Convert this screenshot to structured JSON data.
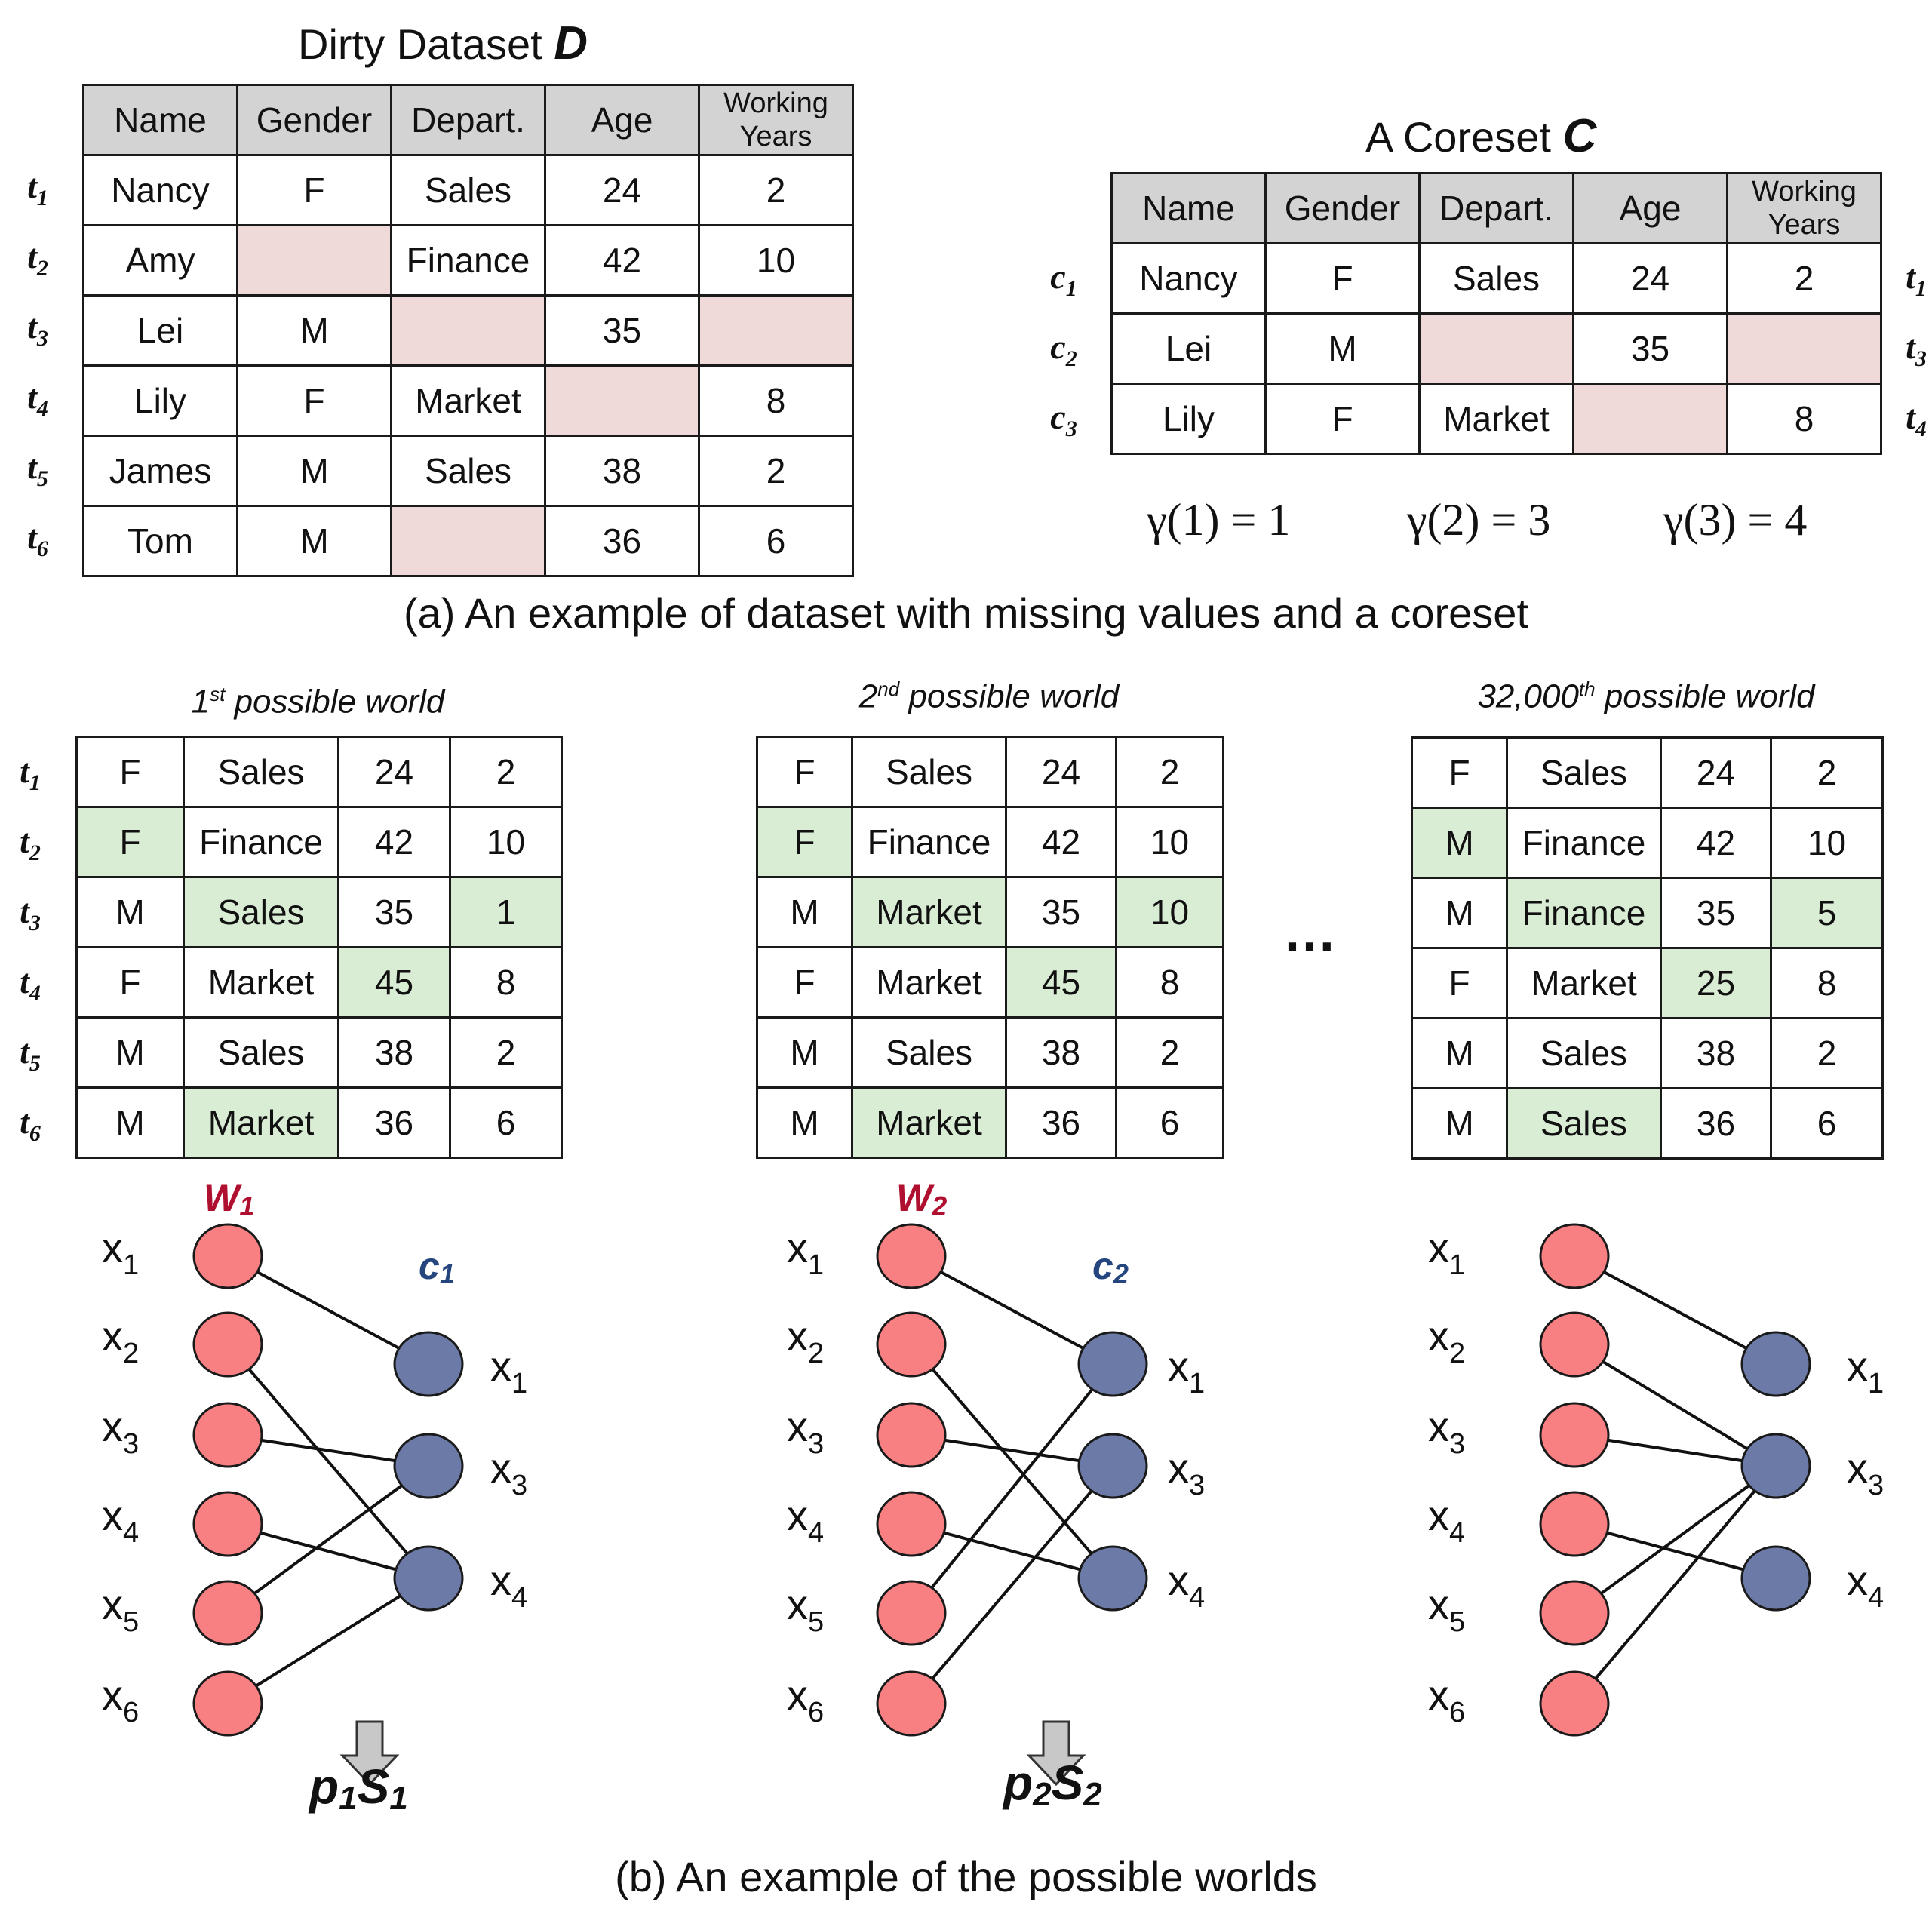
{
  "dirty": {
    "title_text": "Dirty Dataset ",
    "title_symbol": "D",
    "headers": [
      "Name",
      "Gender",
      "Depart.",
      "Age"
    ],
    "header_last_line1": "Working",
    "header_last_line2": "Years",
    "row_labels": [
      "t",
      "t",
      "t",
      "t",
      "t",
      "t"
    ],
    "row_subs": [
      "1",
      "2",
      "3",
      "4",
      "5",
      "6"
    ],
    "rows": [
      [
        "Nancy",
        "F",
        "Sales",
        "24",
        "2"
      ],
      [
        "Amy",
        "",
        "Finance",
        "42",
        "10"
      ],
      [
        "Lei",
        "M",
        "",
        "35",
        ""
      ],
      [
        "Lily",
        "F",
        "Market",
        "",
        "8"
      ],
      [
        "James",
        "M",
        "Sales",
        "38",
        "2"
      ],
      [
        "Tom",
        "M",
        "",
        "36",
        "6"
      ]
    ],
    "missing": [
      [
        1,
        1
      ],
      [
        2,
        2
      ],
      [
        2,
        4
      ],
      [
        3,
        3
      ],
      [
        5,
        2
      ]
    ]
  },
  "coreset": {
    "title_text": "A Coreset ",
    "title_symbol": "C",
    "headers": [
      "Name",
      "Gender",
      "Depart.",
      "Age"
    ],
    "header_last_line1": "Working",
    "header_last_line2": "Years",
    "row_labels": [
      "c",
      "c",
      "c"
    ],
    "row_subs": [
      "1",
      "2",
      "3"
    ],
    "right_labels": [
      "t",
      "t",
      "t"
    ],
    "right_subs": [
      "1",
      "3",
      "4"
    ],
    "rows": [
      [
        "Nancy",
        "F",
        "Sales",
        "24",
        "2"
      ],
      [
        "Lei",
        "M",
        "",
        "35",
        ""
      ],
      [
        "Lily",
        "F",
        "Market",
        "",
        "8"
      ]
    ],
    "missing": [
      [
        1,
        2
      ],
      [
        1,
        4
      ],
      [
        2,
        3
      ]
    ],
    "gammas": [
      "γ(1) = 1",
      "γ(2) = 3",
      "γ(3) = 4"
    ]
  },
  "caption_a": "(a) An example of dataset with missing values and a coreset",
  "caption_b": "(b) An example of the possible worlds",
  "ellipsis": "…",
  "worlds": [
    {
      "title_num": "1",
      "title_sup": "st",
      "title_rest": "  possible world",
      "rows": [
        [
          "F",
          "Sales",
          "24",
          "2"
        ],
        [
          "F",
          "Finance",
          "42",
          "10"
        ],
        [
          "M",
          "Sales",
          "35",
          "1"
        ],
        [
          "F",
          "Market",
          "45",
          "8"
        ],
        [
          "M",
          "Sales",
          "38",
          "2"
        ],
        [
          "M",
          "Market",
          "36",
          "6"
        ]
      ],
      "imputed": [
        [
          1,
          0
        ],
        [
          2,
          1
        ],
        [
          2,
          3
        ],
        [
          3,
          2
        ],
        [
          5,
          1
        ]
      ],
      "w_label": "W",
      "w_sub": "1",
      "c_label": "c",
      "c_sub": "1",
      "left_nodes": [
        "x1",
        "x2",
        "x3",
        "x4",
        "x5",
        "x6"
      ],
      "right_nodes": [
        "x1",
        "x3",
        "x4"
      ],
      "edges": [
        [
          0,
          0
        ],
        [
          1,
          2
        ],
        [
          2,
          1
        ],
        [
          3,
          2
        ],
        [
          4,
          1
        ],
        [
          5,
          2
        ]
      ],
      "result": "p",
      "result_sub1": "1",
      "result_s": "S",
      "result_sub2": "1"
    },
    {
      "title_num": "2",
      "title_sup": "nd",
      "title_rest": "  possible world",
      "rows": [
        [
          "F",
          "Sales",
          "24",
          "2"
        ],
        [
          "F",
          "Finance",
          "42",
          "10"
        ],
        [
          "M",
          "Market",
          "35",
          "10"
        ],
        [
          "F",
          "Market",
          "45",
          "8"
        ],
        [
          "M",
          "Sales",
          "38",
          "2"
        ],
        [
          "M",
          "Market",
          "36",
          "6"
        ]
      ],
      "imputed": [
        [
          1,
          0
        ],
        [
          2,
          1
        ],
        [
          2,
          3
        ],
        [
          3,
          2
        ],
        [
          5,
          1
        ]
      ],
      "w_label": "W",
      "w_sub": "2",
      "c_label": "c",
      "c_sub": "2",
      "left_nodes": [
        "x1",
        "x2",
        "x3",
        "x4",
        "x5",
        "x6"
      ],
      "right_nodes": [
        "x1",
        "x3",
        "x4"
      ],
      "edges": [
        [
          0,
          0
        ],
        [
          1,
          2
        ],
        [
          2,
          1
        ],
        [
          3,
          2
        ],
        [
          4,
          0
        ],
        [
          5,
          1
        ]
      ],
      "result": "p",
      "result_sub1": "2",
      "result_s": "S",
      "result_sub2": "2"
    },
    {
      "title_num": "32,000",
      "title_sup": "th",
      "title_rest": "  possible world",
      "rows": [
        [
          "F",
          "Sales",
          "24",
          "2"
        ],
        [
          "M",
          "Finance",
          "42",
          "10"
        ],
        [
          "M",
          "Finance",
          "35",
          "5"
        ],
        [
          "F",
          "Market",
          "25",
          "8"
        ],
        [
          "M",
          "Sales",
          "38",
          "2"
        ],
        [
          "M",
          "Sales",
          "36",
          "6"
        ]
      ],
      "imputed": [
        [
          1,
          0
        ],
        [
          2,
          1
        ],
        [
          2,
          3
        ],
        [
          3,
          2
        ],
        [
          5,
          1
        ]
      ],
      "left_nodes": [
        "x1",
        "x2",
        "x3",
        "x4",
        "x5",
        "x6"
      ],
      "right_nodes": [
        "x1",
        "x3",
        "x4"
      ],
      "edges": [
        [
          0,
          0
        ],
        [
          1,
          1
        ],
        [
          2,
          1
        ],
        [
          3,
          2
        ],
        [
          4,
          1
        ],
        [
          5,
          1
        ]
      ]
    }
  ],
  "colors": {
    "left_node": "#f88083",
    "right_node": "#6b7aa6",
    "w_label": "#b01030",
    "c_label": "#24457e",
    "missing": "#f0d9d9",
    "imputed": "#d9ecd4",
    "header": "#d3d3d3"
  }
}
